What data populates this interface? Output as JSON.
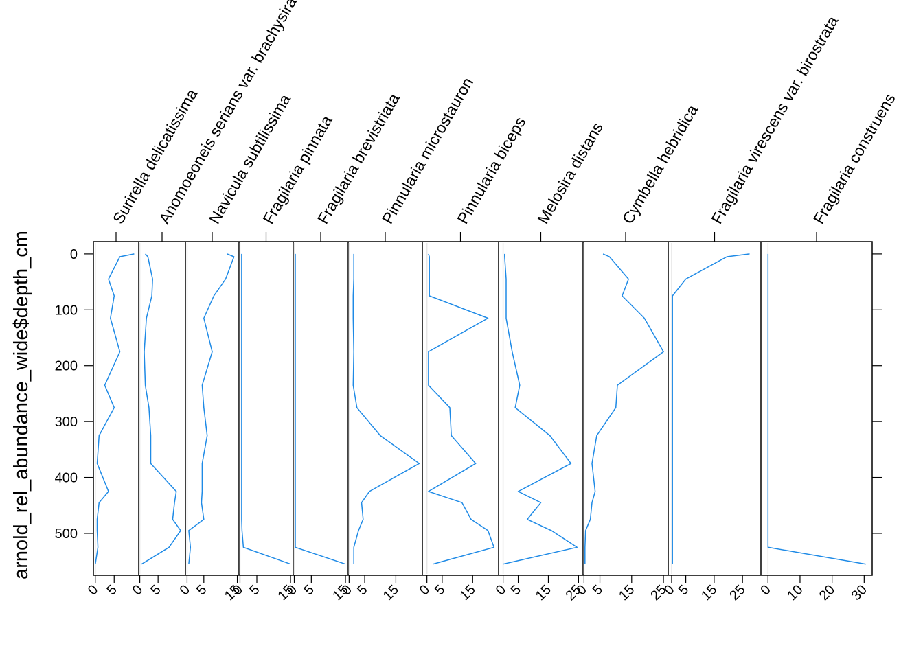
{
  "chart_data": {
    "type": "line",
    "orientation": "stratigraphic",
    "ylabel": "arnold_rel_abundance_wide$depth_cm",
    "y_axis": {
      "reversed": true,
      "ticks": [
        0,
        100,
        200,
        300,
        400,
        500
      ],
      "ylim": [
        -22,
        575
      ]
    },
    "depths": [
      0,
      5,
      45,
      75,
      115,
      175,
      235,
      275,
      325,
      375,
      425,
      445,
      475,
      495,
      525,
      555
    ],
    "series_color": "#1e8ae6",
    "grid": false,
    "panels": [
      {
        "name": "Surirella delicatissima",
        "xlim": [
          -0.5,
          11.5
        ],
        "tick_values": [
          0,
          5
        ],
        "tick_labels": [
          "0",
          "5"
        ],
        "values": [
          10.3,
          6.5,
          3.5,
          5,
          4,
          6.5,
          2.5,
          5,
          1,
          0.5,
          3.5,
          1,
          0.5,
          0.5,
          0.7,
          0
        ]
      },
      {
        "name": "Anomoeoneis serians var. brachysira",
        "xlim": [
          -0.3,
          12.5
        ],
        "tick_values": [
          0,
          5
        ],
        "tick_labels": [
          "0",
          "5"
        ],
        "values": [
          1.5,
          2.2,
          3.5,
          3.3,
          1.8,
          1.2,
          1.5,
          2.5,
          3,
          3,
          10,
          9.5,
          9,
          11.2,
          8,
          0.5
        ]
      },
      {
        "name": "Navicula subtilissima",
        "xlim": [
          -0.5,
          15.5
        ],
        "tick_values": [
          0,
          5,
          15
        ],
        "tick_labels": [
          "0",
          "5",
          "15"
        ],
        "values": [
          12,
          14,
          11.5,
          8,
          5,
          7.5,
          4.5,
          5,
          6,
          4.5,
          4.5,
          4.3,
          5,
          0.5,
          1,
          0.5
        ]
      },
      {
        "name": "Fragilaria pinnata",
        "xlim": [
          -0.3,
          15.8
        ],
        "tick_values": [
          0,
          5,
          15
        ],
        "tick_labels": [
          "0",
          "5",
          "15"
        ],
        "values": [
          0.5,
          0.5,
          0.5,
          0.5,
          0.5,
          0.5,
          0.5,
          0.5,
          0.5,
          0.5,
          0.5,
          0.5,
          0.5,
          0.6,
          1,
          15
        ]
      },
      {
        "name": "Fragilaria brevistriata",
        "xlim": [
          -0.3,
          15.8
        ],
        "tick_values": [
          0,
          5,
          15
        ],
        "tick_labels": [
          "0",
          "5",
          "15"
        ],
        "values": [
          0.3,
          0.3,
          0.3,
          0.3,
          0.3,
          0.3,
          0.3,
          0.3,
          0.3,
          0.3,
          0.3,
          0.3,
          0.3,
          0.3,
          0.3,
          15
        ]
      },
      {
        "name": "Pinnularia microstauron",
        "xlim": [
          -0.3,
          23.5
        ],
        "tick_values": [
          0,
          5,
          15
        ],
        "tick_labels": [
          "0",
          "5",
          "15"
        ],
        "values": [
          1.5,
          1.5,
          1.5,
          1.3,
          1.3,
          1.5,
          1.3,
          2.5,
          10,
          22.5,
          6.5,
          4,
          4.5,
          3,
          1.5,
          1.5
        ]
      },
      {
        "name": "Pinnularia biceps",
        "xlim": [
          -1.5,
          23.5
        ],
        "tick_values": [
          0,
          5,
          15
        ],
        "tick_labels": [
          "0",
          "5",
          "15"
        ],
        "values": [
          0.5,
          0.8,
          0.8,
          0.8,
          20,
          0.5,
          0.5,
          7.5,
          8,
          16,
          0.5,
          11.5,
          14.5,
          20,
          22,
          2
        ]
      },
      {
        "name": "Melosira distans",
        "xlim": [
          -1.5,
          26.5
        ],
        "tick_values": [
          0,
          5,
          15,
          25
        ],
        "tick_labels": [
          "0",
          "5",
          "15",
          "25"
        ],
        "values": [
          0.5,
          0.5,
          1,
          1,
          1,
          3,
          5.5,
          4,
          15.5,
          22.5,
          5,
          12.5,
          8,
          16,
          24.5,
          0
        ]
      },
      {
        "name": "Cymbella hebridica",
        "xlim": [
          -0.3,
          26.5
        ],
        "tick_values": [
          0,
          5,
          15,
          25
        ],
        "tick_labels": [
          "0",
          "5",
          "15",
          "25"
        ],
        "values": [
          6,
          8,
          14,
          12,
          19,
          25,
          10.5,
          10,
          4,
          2.5,
          3.5,
          2.5,
          2,
          0.5,
          0.3,
          0.3
        ]
      },
      {
        "name": "Fragilaria virescens var. birostrata",
        "xlim": [
          -1.2,
          31.5
        ],
        "tick_values": [
          0,
          5,
          15,
          25
        ],
        "tick_labels": [
          "0",
          "5",
          "15",
          "25"
        ],
        "values": [
          27.5,
          19.5,
          5,
          0.3,
          0.3,
          0.3,
          0.3,
          0.3,
          0.3,
          0.3,
          0.3,
          0.3,
          0.3,
          0.3,
          0.3,
          0.3
        ]
      },
      {
        "name": "Fragilaria construens",
        "xlim": [
          -2.2,
          32.5
        ],
        "tick_values": [
          0,
          10,
          20,
          30
        ],
        "tick_labels": [
          "0",
          "10",
          "20",
          "30"
        ],
        "values": [
          0,
          0,
          0,
          0,
          0,
          0,
          0,
          0,
          0,
          0,
          0,
          0,
          0,
          0,
          0,
          30.5
        ]
      }
    ]
  }
}
